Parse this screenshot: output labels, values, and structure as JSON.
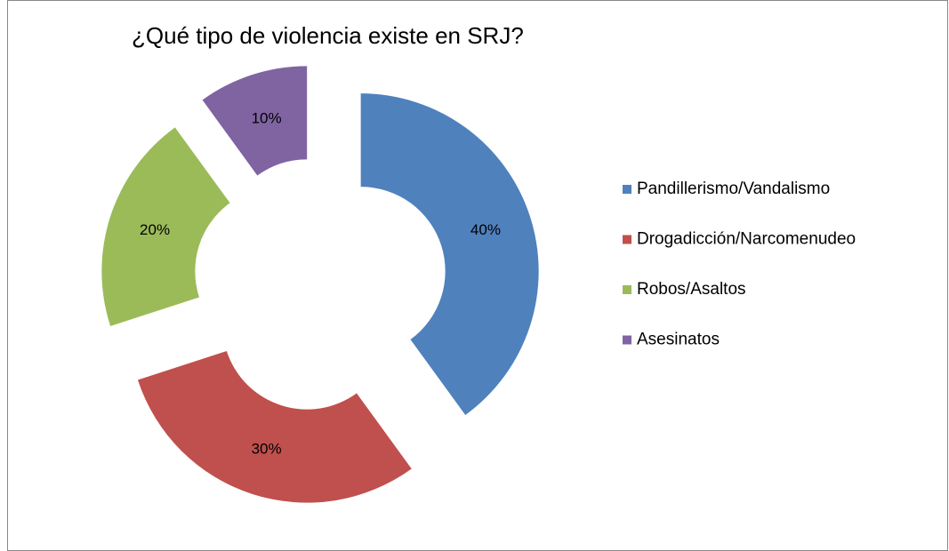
{
  "chart_data": {
    "type": "pie",
    "donut": true,
    "exploded": true,
    "title": "¿Qué tipo de violencia existe en SRJ?",
    "categories": [
      "Pandillerismo/Vandalismo",
      "Drogadicción/Narcomenudeo",
      "Robos/Asaltos",
      "Asesinatos"
    ],
    "values": [
      40,
      30,
      20,
      10
    ],
    "value_labels": [
      "40%",
      "30%",
      "20%",
      "10%"
    ],
    "colors": [
      "#4f81bd",
      "#c0504d",
      "#9bbb59",
      "#8064a2"
    ],
    "legend": "right"
  }
}
